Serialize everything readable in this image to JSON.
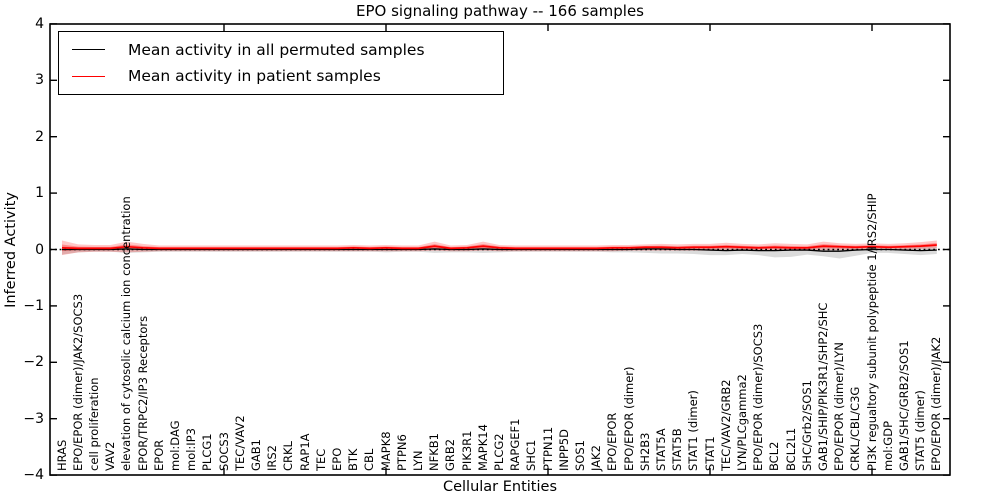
{
  "title": "EPO signaling pathway -- 166 samples",
  "axes": {
    "ylabel": "Inferred Activity",
    "xlabel": "Cellular Entities",
    "ylim": [
      -4,
      4
    ],
    "grid": false,
    "yticks": [
      {
        "value": 4,
        "label": "4"
      },
      {
        "value": 3,
        "label": "3"
      },
      {
        "value": 2,
        "label": "2"
      },
      {
        "value": 1,
        "label": "1"
      },
      {
        "value": 0,
        "label": "0"
      },
      {
        "value": -1,
        "label": "−1"
      },
      {
        "value": -2,
        "label": "−2"
      },
      {
        "value": -3,
        "label": "−3"
      },
      {
        "value": -4,
        "label": "−4"
      }
    ],
    "xticks": [
      10,
      20,
      30,
      40,
      50
    ]
  },
  "legend": {
    "position": "upper left",
    "entries": [
      {
        "label": "Mean activity in all permuted samples",
        "color": "#000000"
      },
      {
        "label": "Mean activity in patient samples",
        "color": "#ff0000"
      }
    ]
  },
  "chart_data": {
    "type": "line",
    "title": "EPO signaling pathway -- 166 samples",
    "xlabel": "Cellular Entities",
    "ylabel": "Inferred Activity",
    "ylim": [
      -4,
      4
    ],
    "categories": [
      "HRAS",
      "EPO/EPOR (dimer)/JAK2/SOCS3",
      "cell proliferation",
      "VAV2",
      "elevation of cytosolic calcium ion concentration",
      "EPOR/TRPC2/IP3 Receptors",
      "EPOR",
      "mol:DAG",
      "mol:IP3",
      "PLCG1",
      "SOCS3",
      "TEC/VAV2",
      "GAB1",
      "IRS2",
      "CRKL",
      "RAP1A",
      "TEC",
      "EPO",
      "BTK",
      "CBL",
      "MAPK8",
      "PTPN6",
      "LYN",
      "NFKB1",
      "GRB2",
      "PIK3R1",
      "MAPK14",
      "PLCG2",
      "RAPGEF1",
      "SHC1",
      "PTPN11",
      "INPP5D",
      "SOS1",
      "JAK2",
      "EPO/EPOR",
      "EPO/EPOR (dimer)",
      "SH2B3",
      "STAT5A",
      "STAT5B",
      "STAT1 (dimer)",
      "STAT1",
      "TEC/VAV2/GRB2",
      "LYN/PLCgamma2",
      "EPO/EPOR (dimer)/SOCS3",
      "BCL2",
      "BCL2L1",
      "SHC/Grb2/SOS1",
      "GAB1/SHIP/PIK3R1/SHP2/SHC",
      "EPO/EPOR (dimer)/LYN",
      "CRKL/CBL/C3G",
      "PI3K regualtory subunit polypeptide 1/IRS2/SHIP",
      "mol:GDP",
      "GAB1/SHC/GRB2/SOS1",
      "STAT5 (dimer)",
      "EPO/EPOR (dimer)/JAK2"
    ],
    "zero_line": {
      "style": "dotted",
      "color": "#000000",
      "y": 0
    },
    "series": [
      {
        "name": "Mean activity in all permuted samples",
        "color": "#000000",
        "band_color": "rgba(0,0,0,0.14)",
        "values": [
          0,
          0,
          0,
          0,
          0.01,
          0,
          0,
          0,
          0,
          0,
          0,
          0,
          0,
          0,
          0,
          0,
          0,
          0,
          0,
          0,
          0,
          0,
          0,
          0.01,
          0,
          0,
          0.01,
          0,
          0,
          0,
          0,
          0,
          0,
          0,
          0,
          0,
          0.01,
          0.01,
          0,
          0,
          -0.01,
          -0.02,
          -0.01,
          -0.02,
          -0.02,
          -0.01,
          -0.01,
          -0.03,
          -0.03,
          -0.01,
          0,
          0,
          -0.01,
          -0.02,
          -0.01
        ],
        "band_upper": [
          0.05,
          0.04,
          0.04,
          0.04,
          0.05,
          0.04,
          0.03,
          0.03,
          0.03,
          0.03,
          0.03,
          0.03,
          0.03,
          0.03,
          0.03,
          0.03,
          0.03,
          0.03,
          0.03,
          0.03,
          0.03,
          0.03,
          0.03,
          0.04,
          0.03,
          0.03,
          0.04,
          0.03,
          0.03,
          0.03,
          0.03,
          0.03,
          0.03,
          0.03,
          0.03,
          0.04,
          0.04,
          0.05,
          0.05,
          0.05,
          0.05,
          0.05,
          0.05,
          0.05,
          0.05,
          0.05,
          0.04,
          0.05,
          0.05,
          0.04,
          0.04,
          0.04,
          0.05,
          0.05,
          0.05
        ],
        "band_lower": [
          -0.09,
          -0.05,
          -0.04,
          -0.04,
          -0.06,
          -0.05,
          -0.04,
          -0.04,
          -0.04,
          -0.04,
          -0.04,
          -0.04,
          -0.04,
          -0.04,
          -0.04,
          -0.04,
          -0.04,
          -0.04,
          -0.04,
          -0.04,
          -0.05,
          -0.04,
          -0.04,
          -0.06,
          -0.05,
          -0.05,
          -0.06,
          -0.05,
          -0.04,
          -0.04,
          -0.04,
          -0.04,
          -0.04,
          -0.04,
          -0.05,
          -0.05,
          -0.06,
          -0.07,
          -0.07,
          -0.08,
          -0.1,
          -0.1,
          -0.08,
          -0.1,
          -0.14,
          -0.13,
          -0.09,
          -0.12,
          -0.16,
          -0.11,
          -0.06,
          -0.06,
          -0.08,
          -0.1,
          -0.08
        ]
      },
      {
        "name": "Mean activity in patient samples",
        "color": "#ff0000",
        "band_color": "rgba(255,0,0,0.22)",
        "band_inner_color": "rgba(255,0,0,0.30)",
        "values": [
          0.03,
          0.02,
          0.02,
          0.02,
          0.05,
          0.03,
          0.02,
          0.02,
          0.02,
          0.02,
          0.02,
          0.02,
          0.02,
          0.02,
          0.02,
          0.02,
          0.02,
          0.02,
          0.03,
          0.02,
          0.03,
          0.02,
          0.02,
          0.06,
          0.02,
          0.03,
          0.06,
          0.03,
          0.02,
          0.02,
          0.02,
          0.02,
          0.02,
          0.02,
          0.03,
          0.03,
          0.04,
          0.04,
          0.03,
          0.04,
          0.04,
          0.05,
          0.04,
          0.03,
          0.04,
          0.03,
          0.03,
          0.06,
          0.05,
          0.04,
          0.05,
          0.04,
          0.05,
          0.06,
          0.08
        ],
        "band_upper": [
          0.16,
          0.09,
          0.08,
          0.08,
          0.14,
          0.1,
          0.07,
          0.07,
          0.07,
          0.07,
          0.07,
          0.07,
          0.07,
          0.07,
          0.07,
          0.07,
          0.07,
          0.07,
          0.08,
          0.07,
          0.08,
          0.07,
          0.07,
          0.14,
          0.07,
          0.08,
          0.14,
          0.08,
          0.07,
          0.07,
          0.07,
          0.07,
          0.07,
          0.07,
          0.08,
          0.08,
          0.09,
          0.1,
          0.09,
          0.1,
          0.1,
          0.12,
          0.1,
          0.09,
          0.11,
          0.1,
          0.09,
          0.14,
          0.11,
          0.1,
          0.11,
          0.1,
          0.11,
          0.13,
          0.16
        ],
        "band_lower": [
          -0.1,
          -0.05,
          -0.04,
          -0.04,
          -0.05,
          -0.04,
          -0.03,
          -0.03,
          -0.03,
          -0.03,
          -0.03,
          -0.03,
          -0.03,
          -0.03,
          -0.03,
          -0.03,
          -0.03,
          -0.03,
          -0.03,
          -0.03,
          -0.03,
          -0.03,
          -0.03,
          -0.02,
          -0.03,
          -0.03,
          -0.02,
          -0.03,
          -0.03,
          -0.03,
          -0.03,
          -0.03,
          -0.03,
          -0.03,
          -0.03,
          -0.02,
          -0.02,
          -0.02,
          -0.02,
          -0.02,
          -0.02,
          -0.01,
          -0.02,
          -0.02,
          -0.01,
          -0.02,
          -0.02,
          -0.01,
          -0.01,
          -0.01,
          0.0,
          0.0,
          0.0,
          0.01,
          0.02
        ]
      }
    ]
  }
}
